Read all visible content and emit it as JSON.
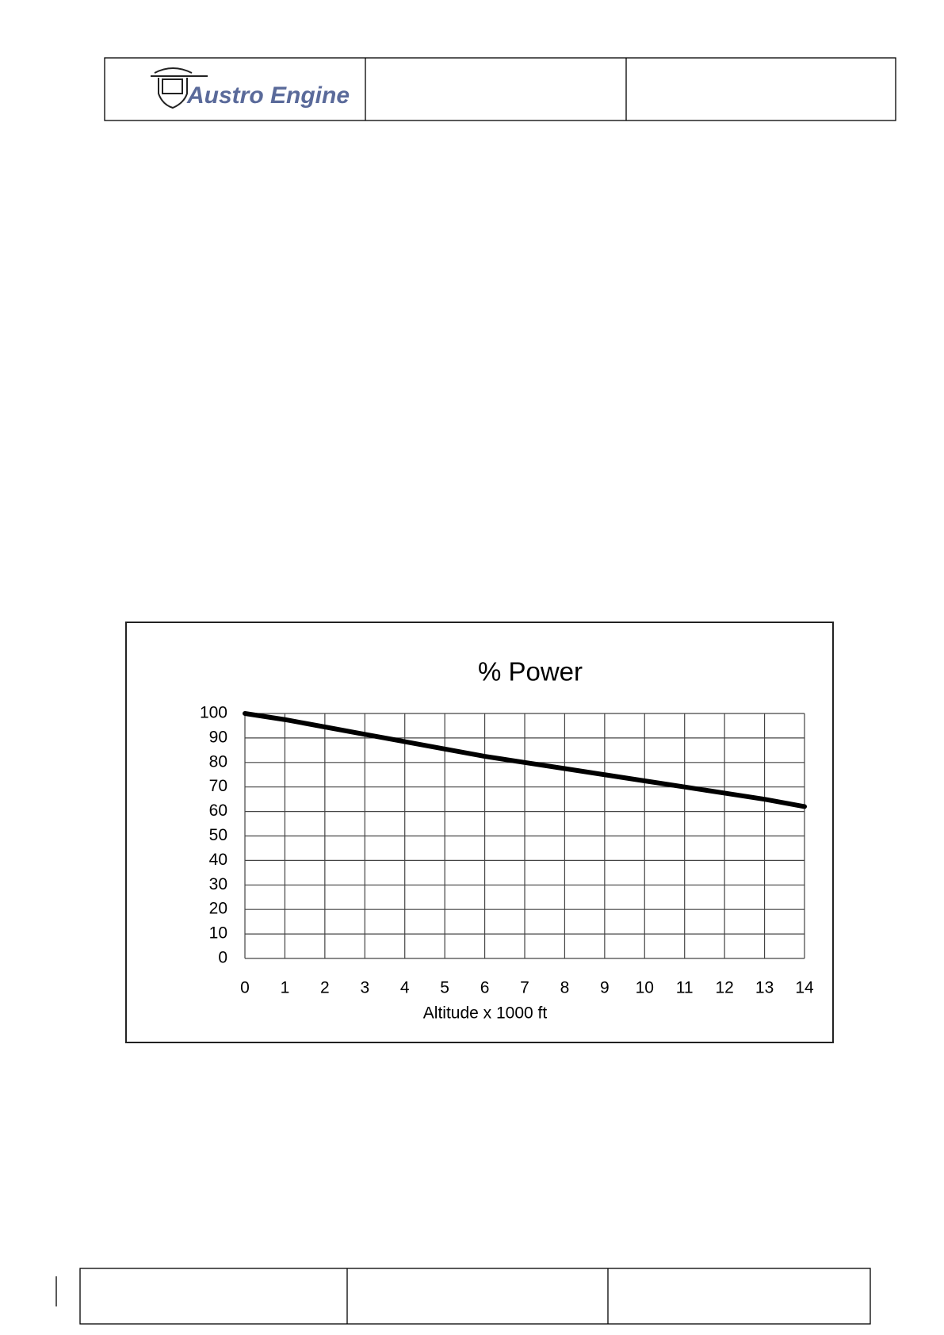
{
  "header": {
    "logo": "Austro Engine"
  },
  "chart_data": {
    "type": "line",
    "title": "% Power",
    "x_label": "Altitude x 1000 ft",
    "x": [
      0,
      1,
      2,
      3,
      4,
      5,
      6,
      7,
      8,
      9,
      10,
      11,
      12,
      13,
      14
    ],
    "series": [
      {
        "name": "% Power",
        "color": "#000000",
        "values": [
          100,
          97.5,
          94.5,
          91.5,
          88.5,
          85.5,
          82.5,
          80,
          77.5,
          75,
          72.5,
          70,
          67.5,
          65,
          62
        ]
      }
    ],
    "xlim": [
      0,
      14
    ],
    "xticks": [
      0,
      1,
      2,
      3,
      4,
      5,
      6,
      7,
      8,
      9,
      10,
      11,
      12,
      13,
      14
    ],
    "ylim": [
      0,
      100
    ],
    "yticks": [
      0,
      10,
      20,
      30,
      40,
      50,
      60,
      70,
      80,
      90,
      100
    ],
    "grid": true
  }
}
